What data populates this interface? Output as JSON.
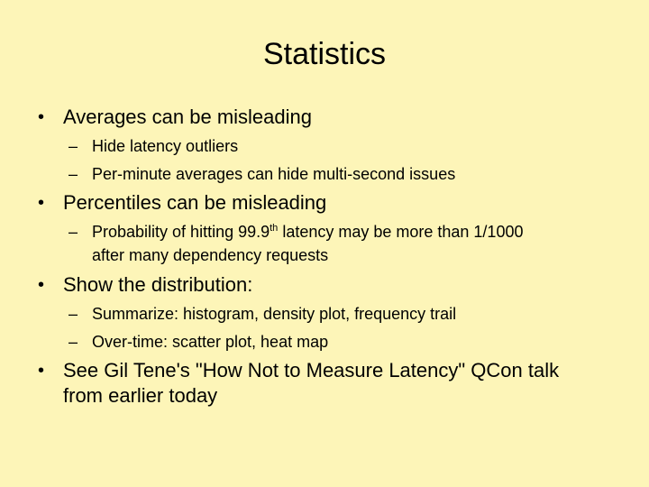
{
  "slide": {
    "title": "Statistics",
    "bullet_glyph": "•",
    "dash_glyph": "–",
    "items": [
      {
        "text": "Averages can be misleading"
      },
      {
        "text": "Hide latency outliers"
      },
      {
        "text": "Per-minute averages can hide multi-second issues"
      },
      {
        "text": "Percentiles can be misleading"
      },
      {
        "text_before": "Probability of hitting 99.9",
        "superscript": "th",
        "text_after": " latency may be more than 1/1000",
        "line2": "after many dependency requests"
      },
      {
        "text": "Show the distribution:"
      },
      {
        "text": "Summarize: histogram, density plot, frequency trail"
      },
      {
        "text": "Over-time: scatter plot, heat map"
      },
      {
        "line1": "See Gil Tene's \"How Not to Measure Latency\" QCon talk",
        "line2": "from earlier today"
      }
    ]
  }
}
